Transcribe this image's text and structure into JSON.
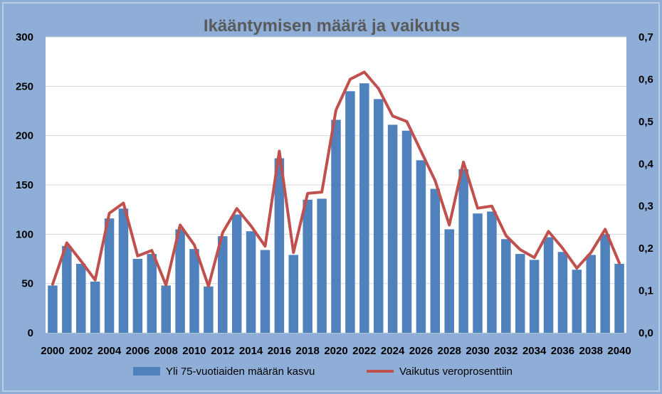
{
  "colors": {
    "background": "#8eaed8",
    "plot_background": "#ffffff",
    "bar": "#4f81bd",
    "line": "#c0504d"
  },
  "chart_data": {
    "type": "bar",
    "title": "Ikääntymisen määrä ja vaikutus",
    "x": [
      2000,
      2001,
      2002,
      2003,
      2004,
      2005,
      2006,
      2007,
      2008,
      2009,
      2010,
      2011,
      2012,
      2013,
      2014,
      2015,
      2016,
      2017,
      2018,
      2019,
      2020,
      2021,
      2022,
      2023,
      2024,
      2025,
      2026,
      2027,
      2028,
      2029,
      2030,
      2031,
      2032,
      2033,
      2034,
      2035,
      2036,
      2037,
      2038,
      2039,
      2040
    ],
    "x_tick_labels": [
      "2000",
      "2002",
      "2004",
      "2006",
      "2008",
      "2010",
      "2012",
      "2014",
      "2016",
      "2018",
      "2020",
      "2022",
      "2024",
      "2026",
      "2028",
      "2030",
      "2032",
      "2034",
      "2036",
      "2038",
      "2040"
    ],
    "y_left_ticks": [
      "0",
      "50",
      "100",
      "150",
      "200",
      "250",
      "300"
    ],
    "y_right_ticks": [
      "0,0",
      "0,1",
      "0,2",
      "0,3",
      "0,4",
      "0,5",
      "0,6",
      "0,7"
    ],
    "ylim_left": [
      0,
      300
    ],
    "ylim_right": [
      0,
      0.7
    ],
    "grid": true,
    "legend_position": "bottom",
    "series": [
      {
        "name": "Yli 75-vuotiaiden määrän kasvu",
        "type": "bar",
        "axis": "left",
        "values": [
          48,
          88,
          70,
          52,
          116,
          126,
          75,
          80,
          48,
          105,
          85,
          47,
          98,
          120,
          103,
          84,
          177,
          79,
          135,
          136,
          216,
          245,
          253,
          237,
          211,
          205,
          175,
          146,
          105,
          166,
          121,
          123,
          95,
          80,
          74,
          97,
          82,
          64,
          79,
          100,
          70
        ]
      },
      {
        "name": "Vaikutus veroprosenttiin",
        "type": "line",
        "axis": "right",
        "values": [
          0.115,
          0.213,
          0.17,
          0.125,
          0.283,
          0.307,
          0.182,
          0.195,
          0.113,
          0.255,
          0.208,
          0.11,
          0.237,
          0.294,
          0.253,
          0.205,
          0.43,
          0.19,
          0.33,
          0.333,
          0.527,
          0.6,
          0.617,
          0.578,
          0.513,
          0.5,
          0.43,
          0.36,
          0.255,
          0.404,
          0.295,
          0.3,
          0.23,
          0.197,
          0.178,
          0.24,
          0.2,
          0.153,
          0.19,
          0.245,
          0.165
        ]
      }
    ]
  }
}
